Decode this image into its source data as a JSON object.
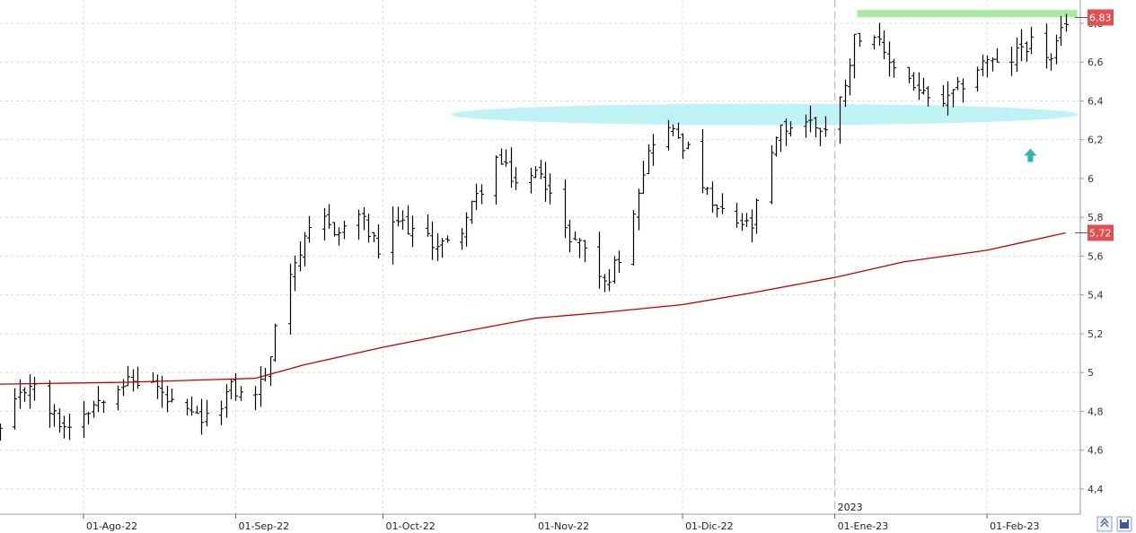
{
  "chart_data": {
    "type": "ohlc",
    "y_ticks": [
      "6,8",
      "6,6",
      "6,4",
      "6,2",
      "6",
      "5,8",
      "5,6",
      "5,4",
      "5,2",
      "5",
      "4,8",
      "4,6",
      "4,4"
    ],
    "y_tick_values": [
      6.8,
      6.6,
      6.4,
      6.2,
      6.0,
      5.8,
      5.6,
      5.4,
      5.2,
      5.0,
      4.8,
      4.6,
      4.4
    ],
    "ylim": [
      4.27,
      6.92
    ],
    "xlim": [
      "2022-07-15",
      "2023-02-20"
    ],
    "x_ticks": [
      {
        "label": "01-Ago-22",
        "date": "2022-08-01"
      },
      {
        "label": "01-Sep-22",
        "date": "2022-09-01"
      },
      {
        "label": "01-Oct-22",
        "date": "2022-10-01"
      },
      {
        "label": "01-Nov-22",
        "date": "2022-11-01"
      },
      {
        "label": "01-Dic-22",
        "date": "2022-12-01"
      },
      {
        "label": "01-Ene-23",
        "date": "2023-01-01"
      },
      {
        "label": "01-Feb-23",
        "date": "2023-02-01"
      }
    ],
    "year_separator": {
      "label": "2023",
      "date": "2023-01-01"
    },
    "last_price": {
      "label": "6,83",
      "value": 6.83,
      "color": "#e05050"
    },
    "ma_last": {
      "label": "5,72",
      "value": 5.72,
      "color": "#e05050"
    },
    "ma_color": "#c00000",
    "ohlc_control_points": [
      [
        "2022-07-15",
        4.7
      ],
      [
        "2022-07-21",
        4.95
      ],
      [
        "2022-07-25",
        4.8
      ],
      [
        "2022-07-28",
        4.72
      ],
      [
        "2022-08-02",
        4.82
      ],
      [
        "2022-08-08",
        4.95
      ],
      [
        "2022-08-15",
        4.95
      ],
      [
        "2022-08-18",
        4.85
      ],
      [
        "2022-08-22",
        4.78
      ],
      [
        "2022-08-26",
        4.75
      ],
      [
        "2022-08-31",
        4.92
      ],
      [
        "2022-09-04",
        4.85
      ],
      [
        "2022-09-08",
        5.05
      ],
      [
        "2022-09-10",
        5.45
      ],
      [
        "2022-09-14",
        5.62
      ],
      [
        "2022-09-18",
        5.8
      ],
      [
        "2022-09-22",
        5.72
      ],
      [
        "2022-09-26",
        5.82
      ],
      [
        "2022-09-30",
        5.62
      ],
      [
        "2022-10-04",
        5.78
      ],
      [
        "2022-10-10",
        5.68
      ],
      [
        "2022-10-15",
        5.65
      ],
      [
        "2022-10-20",
        5.9
      ],
      [
        "2022-10-24",
        6.1
      ],
      [
        "2022-10-29",
        5.95
      ],
      [
        "2022-11-02",
        6.05
      ],
      [
        "2022-11-07",
        5.72
      ],
      [
        "2022-11-11",
        5.65
      ],
      [
        "2022-11-15",
        5.45
      ],
      [
        "2022-11-19",
        5.65
      ],
      [
        "2022-11-23",
        6.05
      ],
      [
        "2022-11-26",
        6.28
      ],
      [
        "2022-11-30",
        6.22
      ],
      [
        "2022-12-03",
        6.1
      ],
      [
        "2022-12-07",
        5.85
      ],
      [
        "2022-12-11",
        5.78
      ],
      [
        "2022-12-15",
        5.75
      ],
      [
        "2022-12-18",
        6.05
      ],
      [
        "2022-12-21",
        6.25
      ],
      [
        "2022-12-26",
        6.3
      ],
      [
        "2022-12-30",
        6.25
      ],
      [
        "2023-01-02",
        6.4
      ],
      [
        "2023-01-05",
        6.72
      ],
      [
        "2023-01-08",
        6.8
      ],
      [
        "2023-01-11",
        6.62
      ],
      [
        "2023-01-15",
        6.55
      ],
      [
        "2023-01-18",
        6.45
      ],
      [
        "2023-01-21",
        6.38
      ],
      [
        "2023-01-24",
        6.4
      ],
      [
        "2023-01-28",
        6.52
      ],
      [
        "2023-02-01",
        6.62
      ],
      [
        "2023-02-04",
        6.55
      ],
      [
        "2023-02-08",
        6.68
      ],
      [
        "2023-02-11",
        6.72
      ],
      [
        "2023-02-14",
        6.6
      ],
      [
        "2023-02-17",
        6.82
      ]
    ],
    "moving_average": [
      [
        "2022-07-15",
        4.94
      ],
      [
        "2022-08-10",
        4.95
      ],
      [
        "2022-09-05",
        4.97
      ],
      [
        "2022-09-15",
        5.04
      ],
      [
        "2022-10-01",
        5.13
      ],
      [
        "2022-10-15",
        5.2
      ],
      [
        "2022-11-01",
        5.28
      ],
      [
        "2022-11-15",
        5.31
      ],
      [
        "2022-12-01",
        5.35
      ],
      [
        "2022-12-15",
        5.41
      ],
      [
        "2023-01-01",
        5.49
      ],
      [
        "2023-01-15",
        5.57
      ],
      [
        "2023-02-01",
        5.63
      ],
      [
        "2023-02-17",
        5.72
      ]
    ],
    "annotations": [
      {
        "kind": "horizontal-band",
        "date_start": "2023-01-01",
        "date_end": "2023-02-17",
        "value": 6.85,
        "color": "#a6eca0"
      },
      {
        "kind": "ellipse",
        "date_start": "2022-10-16",
        "date_end": "2023-02-17",
        "center_value": 6.33,
        "height_value": 0.11,
        "color": "#bff2f5"
      },
      {
        "kind": "arrow-up",
        "date": "2023-02-08",
        "value": 6.15,
        "color": "#2ab6b8"
      }
    ]
  }
}
